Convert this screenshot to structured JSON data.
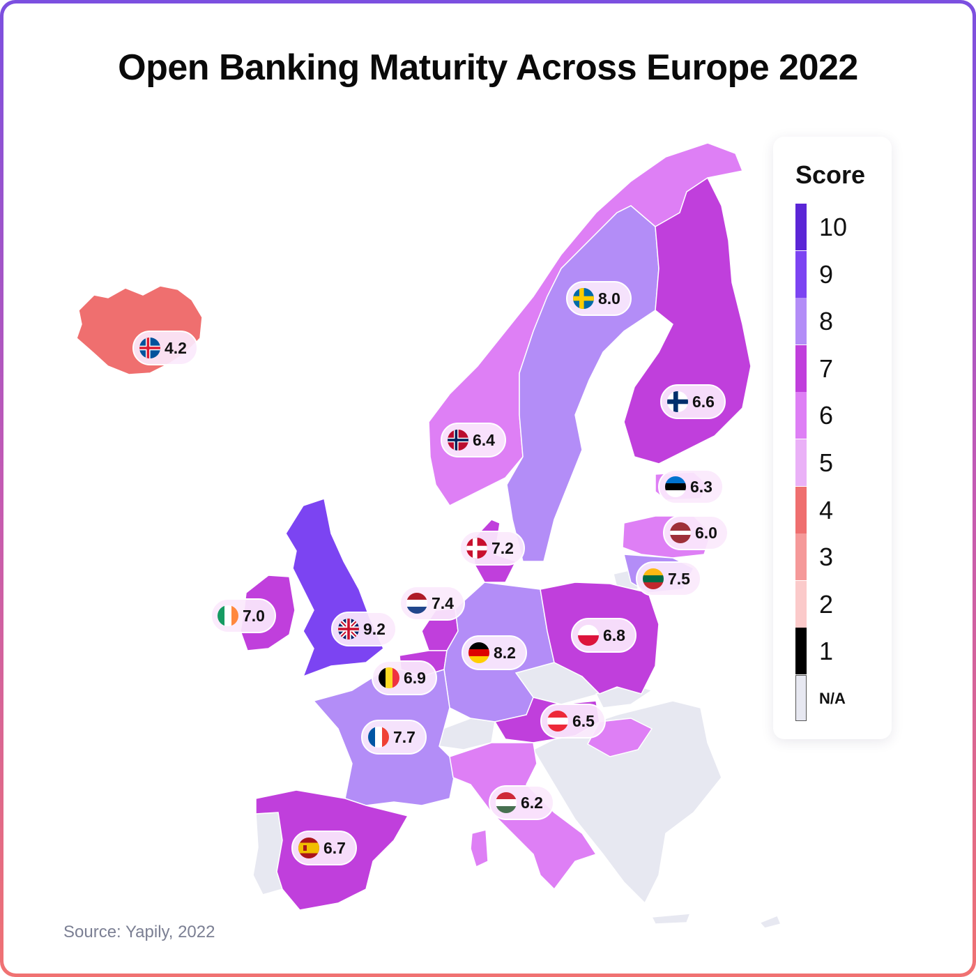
{
  "title": "Open Banking Maturity Across Europe 2022",
  "source": "Source: Yapily, 2022",
  "legend": {
    "title": "Score",
    "items": [
      {
        "label": "10",
        "color": "#5b26d6"
      },
      {
        "label": "9",
        "color": "#7c44f2"
      },
      {
        "label": "8",
        "color": "#b38df7"
      },
      {
        "label": "7",
        "color": "#c03fdc"
      },
      {
        "label": "6",
        "color": "#de7ff5"
      },
      {
        "label": "5",
        "color": "#eab1f7"
      },
      {
        "label": "4",
        "color": "#ef6f6f"
      },
      {
        "label": "3",
        "color": "#f59999"
      },
      {
        "label": "2",
        "color": "#fbcaca"
      },
      {
        "label": "1",
        "color": "#000000"
      },
      {
        "label": "N/A",
        "color": "#e7e8f1"
      }
    ]
  },
  "countries": [
    {
      "id": "iceland",
      "flag": "is",
      "score": "4.2",
      "color": "#ef6f6f"
    },
    {
      "id": "sweden",
      "flag": "se",
      "score": "8.0",
      "color": "#b38df7"
    },
    {
      "id": "finland",
      "flag": "fi",
      "score": "6.6",
      "color": "#c03fdc"
    },
    {
      "id": "norway",
      "flag": "no",
      "score": "6.4",
      "color": "#de7ff5"
    },
    {
      "id": "estonia",
      "flag": "ee",
      "score": "6.3",
      "color": "#de7ff5"
    },
    {
      "id": "latvia",
      "flag": "lv",
      "score": "6.0",
      "color": "#de7ff5"
    },
    {
      "id": "lithuania",
      "flag": "lt",
      "score": "7.5",
      "color": "#b38df7"
    },
    {
      "id": "denmark",
      "flag": "dk",
      "score": "7.2",
      "color": "#c03fdc"
    },
    {
      "id": "netherlands",
      "flag": "nl",
      "score": "7.4",
      "color": "#c03fdc"
    },
    {
      "id": "ireland",
      "flag": "ie",
      "score": "7.0",
      "color": "#c03fdc"
    },
    {
      "id": "uk",
      "flag": "gb",
      "score": "9.2",
      "color": "#7c44f2"
    },
    {
      "id": "germany",
      "flag": "de",
      "score": "8.2",
      "color": "#b38df7"
    },
    {
      "id": "poland",
      "flag": "pl",
      "score": "6.8",
      "color": "#c03fdc"
    },
    {
      "id": "belgium",
      "flag": "be",
      "score": "6.9",
      "color": "#c03fdc"
    },
    {
      "id": "austria",
      "flag": "at",
      "score": "6.5",
      "color": "#c03fdc"
    },
    {
      "id": "france",
      "flag": "fr",
      "score": "7.7",
      "color": "#b38df7"
    },
    {
      "id": "hungary",
      "flag": "hu",
      "score": "6.2",
      "color": "#de7ff5"
    },
    {
      "id": "spain",
      "flag": "es",
      "score": "6.7",
      "color": "#c03fdc"
    },
    {
      "id": "italy",
      "flag": "it",
      "score": "",
      "color": "#de7ff5"
    }
  ]
}
